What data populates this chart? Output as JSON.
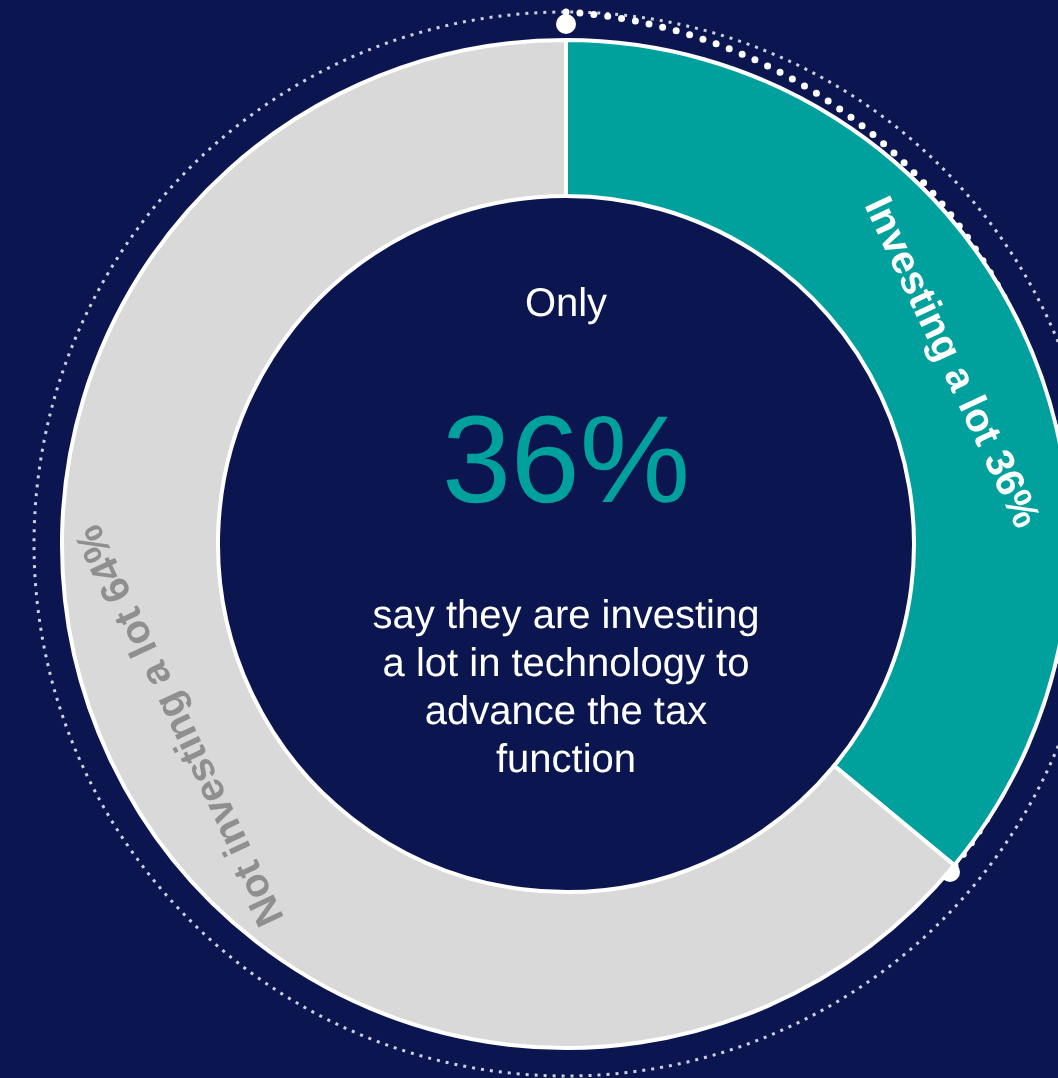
{
  "chart_data": {
    "type": "donut",
    "categories": [
      "Investing a lot 36%",
      "Not investing a lot 64%"
    ],
    "values": [
      36,
      64
    ],
    "colors": [
      "#00a19c",
      "#d9d9d9"
    ],
    "annotations": [
      "Only",
      "36%",
      "say they are investing a lot in technology to advance the tax function"
    ]
  }
}
